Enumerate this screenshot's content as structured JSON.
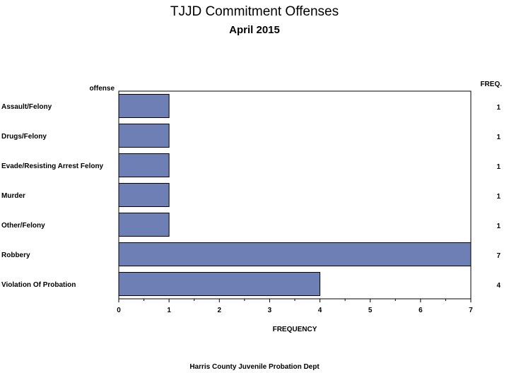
{
  "title": "TJJD Commitment Offenses",
  "subtitle": "April 2015",
  "footnote": "Harris County Juvenile Probation Dept",
  "chart_data": {
    "type": "bar",
    "orientation": "horizontal",
    "categories": [
      "Assault/Felony",
      "Drugs/Felony",
      "Evade/Resisting Arrest Felony",
      "Murder",
      "Other/Felony",
      "Robbery",
      "Violation Of Probation"
    ],
    "values": [
      1,
      1,
      1,
      1,
      1,
      7,
      4
    ],
    "xlabel": "FREQUENCY",
    "ylabel": "offense",
    "value_column_label": "FREQ.",
    "xlim": [
      0,
      7
    ],
    "xticks": [
      0,
      1,
      2,
      3,
      4,
      5,
      6,
      7
    ],
    "grid": false,
    "bar_color": "#6e7fb6"
  }
}
